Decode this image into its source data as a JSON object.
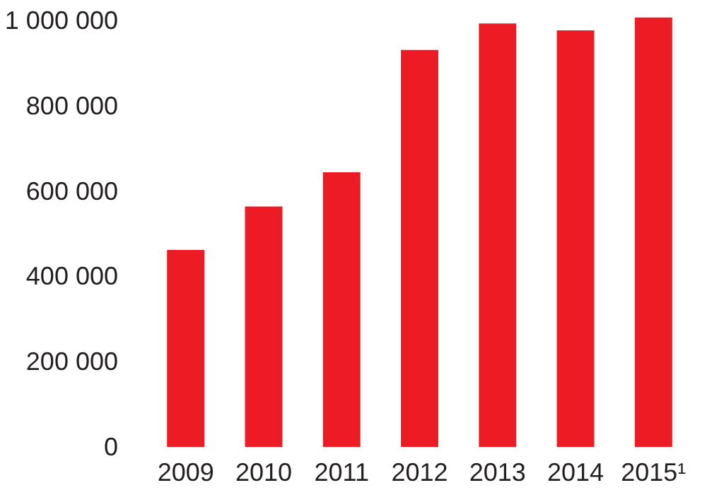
{
  "chart_data": {
    "type": "bar",
    "categories": [
      "2009",
      "2010",
      "2011",
      "2012",
      "2013",
      "2014",
      "2015¹"
    ],
    "values": [
      462000,
      564000,
      644000,
      931000,
      993000,
      977000,
      1007000
    ],
    "color": "#ed1c24",
    "ylim": [
      0,
      1020000
    ],
    "yticks": [
      {
        "value": 0,
        "label": "0"
      },
      {
        "value": 200000,
        "label": "200 000"
      },
      {
        "value": 400000,
        "label": "400 000"
      },
      {
        "value": 600000,
        "label": "600 000"
      },
      {
        "value": 800000,
        "label": "800 000"
      },
      {
        "value": 1000000,
        "label": "1 000 000"
      }
    ],
    "grid": false
  }
}
